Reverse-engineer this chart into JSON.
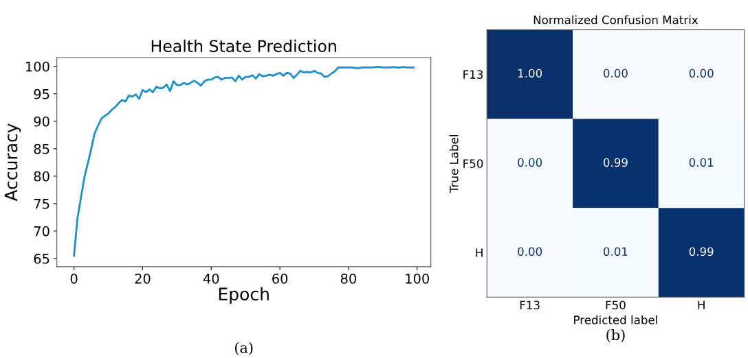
{
  "chart_data": [
    {
      "type": "line",
      "title": "Health State Prediction",
      "xlabel": "Epoch",
      "ylabel": "Accuracy",
      "x": [
        0,
        1,
        2,
        3,
        4,
        5,
        6,
        7,
        8,
        9,
        10,
        11,
        12,
        13,
        14,
        15,
        16,
        17,
        18,
        19,
        20,
        21,
        22,
        23,
        24,
        25,
        26,
        27,
        28,
        29,
        30,
        31,
        32,
        33,
        34,
        35,
        36,
        37,
        38,
        39,
        40,
        41,
        42,
        43,
        44,
        45,
        46,
        47,
        48,
        49,
        50,
        51,
        52,
        53,
        54,
        55,
        56,
        57,
        58,
        59,
        60,
        61,
        62,
        63,
        64,
        65,
        66,
        67,
        68,
        69,
        70,
        71,
        72,
        73,
        74,
        75,
        76,
        77,
        78,
        79,
        80,
        81,
        82,
        83,
        84,
        85,
        86,
        87,
        88,
        89,
        90,
        91,
        92,
        93,
        94,
        95,
        96,
        97,
        98,
        99
      ],
      "series": [
        {
          "color": "#1f8fc8",
          "values": [
            65.5,
            72.3,
            76.0,
            79.7,
            82.3,
            84.9,
            87.8,
            89.2,
            90.5,
            91.0,
            91.4,
            92.1,
            92.6,
            93.3,
            93.9,
            93.6,
            94.7,
            94.5,
            94.9,
            94.1,
            95.7,
            95.3,
            95.8,
            95.3,
            96.3,
            96.0,
            96.1,
            96.7,
            95.5,
            97.3,
            96.6,
            96.6,
            97.0,
            96.7,
            97.0,
            97.4,
            97.0,
            96.5,
            97.3,
            97.6,
            97.6,
            98.0,
            98.1,
            97.6,
            97.9,
            97.9,
            98.0,
            97.3,
            98.3,
            97.6,
            98.1,
            98.1,
            98.4,
            97.8,
            98.6,
            98.2,
            98.3,
            98.5,
            98.3,
            98.6,
            98.8,
            98.3,
            98.8,
            98.7,
            97.9,
            98.5,
            99.2,
            98.9,
            99.0,
            98.9,
            99.2,
            98.8,
            98.7,
            98.1,
            98.2,
            98.7,
            99.1,
            99.8,
            99.8,
            99.8,
            99.8,
            99.8,
            99.7,
            99.7,
            99.8,
            99.8,
            99.8,
            99.8,
            99.9,
            99.9,
            99.8,
            99.8,
            99.8,
            99.9,
            99.8,
            99.8,
            99.9,
            99.8,
            99.8,
            99.8
          ]
        }
      ],
      "xlim": [
        -5,
        104
      ],
      "xticks": [
        0,
        20,
        40,
        60,
        80,
        100
      ],
      "ylim": [
        63.5,
        101.6
      ],
      "yticks": [
        65,
        70,
        75,
        80,
        85,
        90,
        95,
        100
      ],
      "grid": false,
      "legend": false,
      "annotations": [
        "(a)"
      ]
    },
    {
      "type": "heatmap",
      "title": "Normalized Confusion Matrix",
      "xlabel": "Predicted label",
      "ylabel": "True Label",
      "categories": [
        "F13",
        "F50",
        "H"
      ],
      "y_categories": [
        "F13",
        "F50",
        "H"
      ],
      "cells": [
        [
          1.0,
          0.0,
          0.0
        ],
        [
          0.0,
          0.99,
          0.01
        ],
        [
          0.0,
          0.01,
          0.99
        ]
      ],
      "cell_labels": [
        [
          "1.00",
          "0.00",
          "0.00"
        ],
        [
          "0.00",
          "0.99",
          "0.01"
        ],
        [
          "0.00",
          "0.01",
          "0.99"
        ]
      ],
      "annotations": [
        "(b)"
      ]
    }
  ]
}
